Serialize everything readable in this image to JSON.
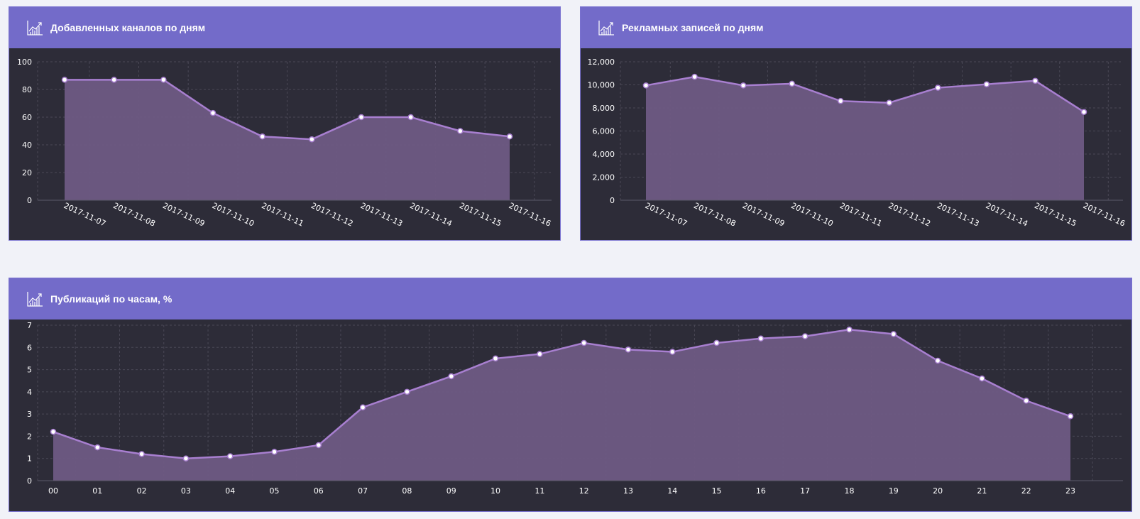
{
  "colors": {
    "header_bg": "#736bc9",
    "plot_bg": "#2d2c38",
    "page_bg": "#f1f2f8",
    "line": "#a87fd0",
    "area": "#6e5a83",
    "grid": "#4a4856",
    "tick_text": "#ffffff"
  },
  "panels": [
    {
      "title": "Добавленных каналов по дням",
      "icon": "line-chart-icon"
    },
    {
      "title": "Рекламных записей по дням",
      "icon": "line-chart-icon"
    },
    {
      "title": "Публикаций по часам, %",
      "icon": "line-chart-icon"
    }
  ],
  "chart_data": [
    {
      "type": "area",
      "title": "Добавленных каналов по дням",
      "categories": [
        "2017-11-07",
        "2017-11-08",
        "2017-11-09",
        "2017-11-10",
        "2017-11-11",
        "2017-11-12",
        "2017-11-13",
        "2017-11-14",
        "2017-11-15",
        "2017-11-16"
      ],
      "series": [
        {
          "values": [
            87,
            87,
            87,
            63,
            46,
            44,
            60,
            60,
            50,
            46
          ]
        }
      ],
      "ylim": [
        0,
        100
      ],
      "yticks": [
        0,
        20,
        40,
        60,
        80,
        100
      ],
      "ytick_labels": [
        "0",
        "20",
        "40",
        "60",
        "80",
        "100"
      ],
      "xlabel": "",
      "ylabel": "",
      "grid": true,
      "rotate_x_labels": true
    },
    {
      "type": "area",
      "title": "Рекламных записей по дням",
      "categories": [
        "2017-11-07",
        "2017-11-08",
        "2017-11-09",
        "2017-11-10",
        "2017-11-11",
        "2017-11-12",
        "2017-11-13",
        "2017-11-14",
        "2017-11-15",
        "2017-11-16"
      ],
      "series": [
        {
          "values": [
            9950,
            10700,
            9950,
            10100,
            8600,
            8450,
            9750,
            10050,
            10350,
            7650
          ]
        }
      ],
      "ylim": [
        0,
        12000
      ],
      "yticks": [
        0,
        2000,
        4000,
        6000,
        8000,
        10000,
        12000
      ],
      "ytick_labels": [
        "0",
        "2,000",
        "4,000",
        "6,000",
        "8,000",
        "10,000",
        "12,000"
      ],
      "xlabel": "",
      "ylabel": "",
      "grid": true,
      "rotate_x_labels": true
    },
    {
      "type": "area",
      "title": "Публикаций по часам, %",
      "categories": [
        "00",
        "01",
        "02",
        "03",
        "04",
        "05",
        "06",
        "07",
        "08",
        "09",
        "10",
        "11",
        "12",
        "13",
        "14",
        "15",
        "16",
        "17",
        "18",
        "19",
        "20",
        "21",
        "22",
        "23"
      ],
      "series": [
        {
          "values": [
            2.2,
            1.5,
            1.2,
            1.0,
            1.1,
            1.3,
            1.6,
            3.3,
            4.0,
            4.7,
            5.5,
            5.7,
            6.2,
            5.9,
            5.8,
            6.2,
            6.4,
            6.5,
            6.8,
            6.6,
            5.4,
            4.6,
            3.6,
            2.9
          ]
        }
      ],
      "ylim": [
        0,
        7
      ],
      "yticks": [
        0,
        1,
        2,
        3,
        4,
        5,
        6,
        7
      ],
      "ytick_labels": [
        "0",
        "1",
        "2",
        "3",
        "4",
        "5",
        "6",
        "7"
      ],
      "xlabel": "",
      "ylabel": "",
      "grid": true,
      "rotate_x_labels": false
    }
  ]
}
